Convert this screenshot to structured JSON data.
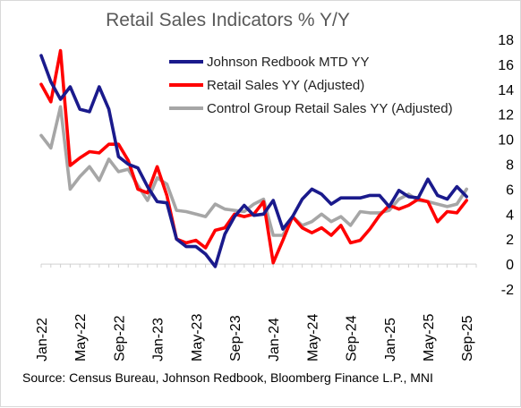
{
  "chart_data": {
    "type": "line",
    "title": "Retail Sales Indicators % Y/Y",
    "ylim": [
      -2,
      18
    ],
    "yticks": [
      -2,
      0,
      2,
      4,
      6,
      8,
      10,
      12,
      14,
      16,
      18
    ],
    "y_axis_side": "right",
    "xticklabels": [
      "Jan-22",
      "May-22",
      "Sep-22",
      "Jan-23",
      "May-23",
      "Sep-23",
      "Jan-24",
      "May-24",
      "Sep-24",
      "Jan-25",
      "May-25",
      "Sep-25"
    ],
    "legend_position": "top-right",
    "grid": false,
    "series": [
      {
        "name": "Johnson Redbook MTD YY",
        "color": "#1a1a8c",
        "x": [
          "2022-01",
          "2022-02",
          "2022-03",
          "2022-04",
          "2022-05",
          "2022-06",
          "2022-07",
          "2022-08",
          "2022-09",
          "2022-10",
          "2022-11",
          "2022-12",
          "2023-01",
          "2023-02",
          "2023-03",
          "2023-04",
          "2023-05",
          "2023-06",
          "2023-07",
          "2023-08",
          "2023-09",
          "2023-10",
          "2023-11",
          "2023-12",
          "2024-01",
          "2024-02",
          "2024-03",
          "2024-04",
          "2024-05",
          "2024-06",
          "2024-07",
          "2024-08",
          "2024-09",
          "2024-10",
          "2024-11",
          "2024-12",
          "2025-01",
          "2025-02",
          "2025-03",
          "2025-04",
          "2025-05",
          "2025-06",
          "2025-07",
          "2025-08",
          "2025-09"
        ],
        "values": [
          16.7,
          14.6,
          13.2,
          14.2,
          12.4,
          12.2,
          14.2,
          12.4,
          8.6,
          8.0,
          7.7,
          6.2,
          5.0,
          4.9,
          2.0,
          1.4,
          1.4,
          0.8,
          -0.2,
          2.4,
          3.8,
          4.7,
          3.9,
          4.0,
          5.1,
          2.8,
          3.8,
          5.2,
          6.0,
          5.6,
          4.8,
          5.3,
          5.3,
          5.3,
          5.5,
          5.5,
          4.6,
          5.9,
          5.4,
          5.3,
          6.8,
          5.5,
          5.2,
          6.2,
          5.4
        ]
      },
      {
        "name": "Retail Sales YY (Adjusted)",
        "color": "#ff0000",
        "x": [
          "2022-01",
          "2022-02",
          "2022-03",
          "2022-04",
          "2022-05",
          "2022-06",
          "2022-07",
          "2022-08",
          "2022-09",
          "2022-10",
          "2022-11",
          "2022-12",
          "2023-01",
          "2023-02",
          "2023-03",
          "2023-04",
          "2023-05",
          "2023-06",
          "2023-07",
          "2023-08",
          "2023-09",
          "2023-10",
          "2023-11",
          "2023-12",
          "2024-01",
          "2024-02",
          "2024-03",
          "2024-04",
          "2024-05",
          "2024-06",
          "2024-07",
          "2024-08",
          "2024-09",
          "2024-10",
          "2024-11",
          "2024-12",
          "2025-01",
          "2025-02",
          "2025-03",
          "2025-04",
          "2025-05",
          "2025-06",
          "2025-07",
          "2025-08",
          "2025-09"
        ],
        "values": [
          14.4,
          13.0,
          17.1,
          7.9,
          8.5,
          9.0,
          8.9,
          9.6,
          9.6,
          8.3,
          6.0,
          5.7,
          7.8,
          5.5,
          2.0,
          1.7,
          1.9,
          1.3,
          2.7,
          2.9,
          4.0,
          3.8,
          4.0,
          5.0,
          0.1,
          1.9,
          3.8,
          2.9,
          2.5,
          2.9,
          2.3,
          3.1,
          1.7,
          1.9,
          2.8,
          3.9,
          4.7,
          4.4,
          4.7,
          5.2,
          5.0,
          3.4,
          4.2,
          4.1,
          5.1
        ]
      },
      {
        "name": "Control Group Retail Sales YY (Adjusted)",
        "color": "#a6a6a6",
        "x": [
          "2022-01",
          "2022-02",
          "2022-03",
          "2022-04",
          "2022-05",
          "2022-06",
          "2022-07",
          "2022-08",
          "2022-09",
          "2022-10",
          "2022-11",
          "2022-12",
          "2023-01",
          "2023-02",
          "2023-03",
          "2023-04",
          "2023-05",
          "2023-06",
          "2023-07",
          "2023-08",
          "2023-09",
          "2023-10",
          "2023-11",
          "2023-12",
          "2024-01",
          "2024-02",
          "2024-03",
          "2024-04",
          "2024-05",
          "2024-06",
          "2024-07",
          "2024-08",
          "2024-09",
          "2024-10",
          "2024-11",
          "2024-12",
          "2025-01",
          "2025-02",
          "2025-03",
          "2025-04",
          "2025-05",
          "2025-06",
          "2025-07",
          "2025-08",
          "2025-09"
        ],
        "values": [
          10.3,
          9.3,
          12.6,
          6.0,
          7.0,
          7.8,
          6.7,
          8.4,
          7.4,
          7.6,
          6.3,
          5.1,
          6.9,
          6.4,
          4.3,
          4.2,
          4.0,
          3.8,
          4.8,
          4.4,
          4.3,
          4.2,
          4.8,
          5.2,
          2.3,
          2.3,
          3.8,
          3.1,
          3.4,
          4.0,
          3.4,
          3.8,
          3.1,
          4.2,
          4.1,
          4.1,
          4.3,
          5.2,
          5.6,
          5.1,
          5.0,
          4.8,
          4.6,
          4.8,
          6.0
        ]
      }
    ]
  },
  "source_text": "Source: Census Bureau, Johnson Redbook, Bloomberg Finance L.P., MNI"
}
